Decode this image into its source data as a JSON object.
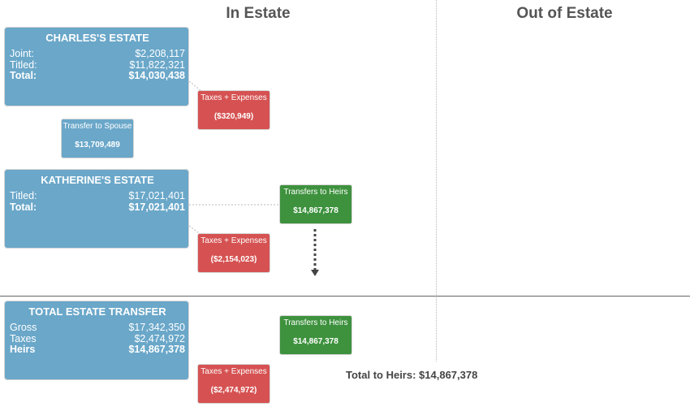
{
  "columns": {
    "in_estate": "In Estate",
    "out_of_estate": "Out of Estate"
  },
  "charles": {
    "title": "CHARLES'S ESTATE",
    "rows": [
      {
        "label": "Joint:",
        "value": "$2,208,117"
      },
      {
        "label": "Titled:",
        "value": "$11,822,321"
      },
      {
        "label": "Total:",
        "value": "$14,030,438"
      }
    ],
    "taxes": {
      "label": "Taxes + Expenses",
      "value": "($320,949)"
    }
  },
  "spouse_transfer": {
    "label": "Transfer to Spouse",
    "value": "$13,709,489"
  },
  "katherine": {
    "title": "KATHERINE'S ESTATE",
    "rows": [
      {
        "label": "Titled:",
        "value": "$17,021,401"
      },
      {
        "label": "Total:",
        "value": "$17,021,401"
      }
    ],
    "taxes": {
      "label": "Taxes + Expenses",
      "value": "($2,154,023)"
    },
    "heirs": {
      "label": "Transfers to Heirs",
      "value": "$14,867,378"
    }
  },
  "total": {
    "title": "TOTAL ESTATE TRANSFER",
    "rows": [
      {
        "label": "Gross",
        "value": "$17,342,350"
      },
      {
        "label": "Taxes",
        "value": "$2,474,972"
      },
      {
        "label": "Heirs",
        "value": "$14,867,378"
      }
    ],
    "taxes": {
      "label": "Taxes + Expenses",
      "value": "($2,474,972)"
    },
    "heirs": {
      "label": "Transfers to Heirs",
      "value": "$14,867,378"
    },
    "total_to_heirs": "Total to Heirs: $14,867,378"
  },
  "colors": {
    "estate": "#6aa7c9",
    "taxes": "#d65252",
    "heirs": "#3e923e"
  }
}
